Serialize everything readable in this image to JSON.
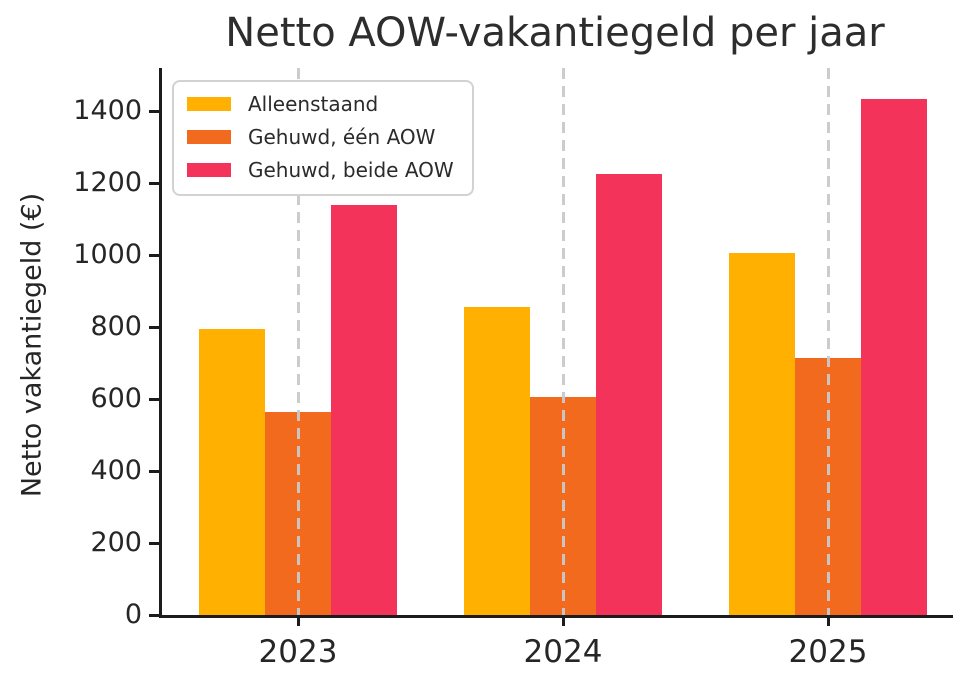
{
  "chart_data": {
    "type": "bar",
    "title": "Netto AOW-vakantiegeld per jaar",
    "xlabel": "",
    "ylabel": "Netto vakantiegeld (€)",
    "categories": [
      "2023",
      "2024",
      "2025"
    ],
    "series": [
      {
        "name": "Alleenstaand",
        "color": "#FFB000",
        "values": [
          795,
          855,
          1005
        ]
      },
      {
        "name": "Gehuwd, één AOW",
        "color": "#F26A1D",
        "values": [
          565,
          605,
          715
        ]
      },
      {
        "name": "Gehuwd, beide AOW",
        "color": "#F4335A",
        "values": [
          1140,
          1225,
          1435
        ]
      }
    ],
    "y_ticks": [
      0,
      200,
      400,
      600,
      800,
      1000,
      1200,
      1400
    ],
    "ylim": [
      0,
      1520
    ],
    "grid": {
      "axis": "x",
      "style": "dashed",
      "color": "#c9c9c9",
      "on_top_of_bars": true
    },
    "legend": {
      "position": "upper left"
    },
    "colors": {
      "text": "#262626",
      "spine": "#1c1c1c",
      "background": "#ffffff"
    }
  }
}
